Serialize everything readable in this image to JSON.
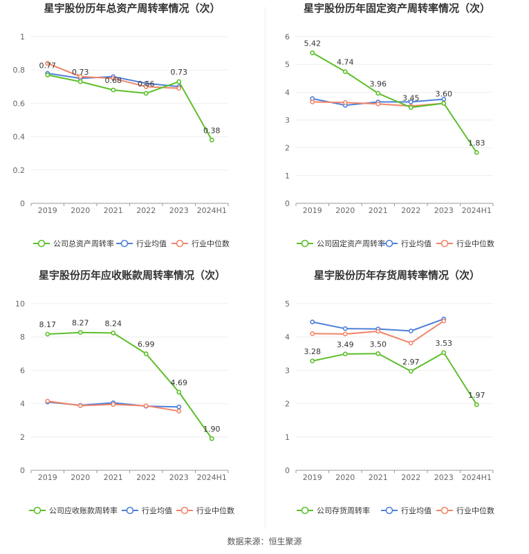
{
  "source_text": "数据来源：恒生聚源",
  "chart_data": [
    {
      "type": "line",
      "title": "星宇股份历年总资产周转率情况（次）",
      "categories": [
        "2019",
        "2020",
        "2021",
        "2022",
        "2023",
        "2024H1"
      ],
      "ylim": [
        0,
        1
      ],
      "yticks": [
        0,
        0.2,
        0.4,
        0.6,
        0.8,
        1
      ],
      "ytick_labels": [
        "0",
        "0.2",
        "0.4",
        "0.6",
        "0.8",
        "1"
      ],
      "series": [
        {
          "name": "公司总资产周转率",
          "color": "#5bbf29",
          "values": [
            0.77,
            0.73,
            0.68,
            0.66,
            0.73,
            0.38
          ],
          "labels": [
            "0.77",
            "0.73",
            "0.68",
            "0.66",
            "0.73",
            "0.38"
          ]
        },
        {
          "name": "行业均值",
          "color": "#4d7fd9",
          "values": [
            0.78,
            0.75,
            0.76,
            0.72,
            0.7,
            null
          ]
        },
        {
          "name": "行业中位数",
          "color": "#f28468",
          "values": [
            0.84,
            0.76,
            0.75,
            0.7,
            0.69,
            null
          ]
        }
      ]
    },
    {
      "type": "line",
      "title": "星宇股份历年固定资产周转率情况（次）",
      "categories": [
        "2019",
        "2020",
        "2021",
        "2022",
        "2023",
        "2024H1"
      ],
      "ylim": [
        0,
        6
      ],
      "yticks": [
        0,
        1,
        2,
        3,
        4,
        5,
        6
      ],
      "ytick_labels": [
        "0",
        "1",
        "2",
        "3",
        "4",
        "5",
        "6"
      ],
      "series": [
        {
          "name": "公司固定资产周转率",
          "color": "#5bbf29",
          "values": [
            5.42,
            4.74,
            3.96,
            3.45,
            3.6,
            1.83
          ],
          "labels": [
            "5.42",
            "4.74",
            "3.96",
            "3.45",
            "3.60",
            "1.83"
          ]
        },
        {
          "name": "行业均值",
          "color": "#4d7fd9",
          "values": [
            3.77,
            3.53,
            3.65,
            3.65,
            3.75,
            null
          ]
        },
        {
          "name": "行业中位数",
          "color": "#f28468",
          "values": [
            3.65,
            3.63,
            3.58,
            3.5,
            3.6,
            null
          ]
        }
      ]
    },
    {
      "type": "line",
      "title": "星宇股份历年应收账款周转率情况（次）",
      "categories": [
        "2019",
        "2020",
        "2021",
        "2022",
        "2023",
        "2024H1"
      ],
      "ylim": [
        0,
        10
      ],
      "yticks": [
        0,
        2,
        4,
        6,
        8,
        10
      ],
      "ytick_labels": [
        "0",
        "2",
        "4",
        "6",
        "8",
        "10"
      ],
      "series": [
        {
          "name": "公司应收账款周转率",
          "color": "#5bbf29",
          "values": [
            8.17,
            8.27,
            8.24,
            6.99,
            4.69,
            1.9
          ],
          "labels": [
            "8.17",
            "8.27",
            "8.24",
            "6.99",
            "4.69",
            "1.90"
          ]
        },
        {
          "name": "行业均值",
          "color": "#4d7fd9",
          "values": [
            4.1,
            3.9,
            4.05,
            3.85,
            3.8,
            null
          ]
        },
        {
          "name": "行业中位数",
          "color": "#f28468",
          "values": [
            4.15,
            3.88,
            3.95,
            3.87,
            3.55,
            null
          ]
        }
      ]
    },
    {
      "type": "line",
      "title": "星宇股份历年存货周转率情况（次）",
      "categories": [
        "2019",
        "2020",
        "2021",
        "2022",
        "2023",
        "2024H1"
      ],
      "ylim": [
        0,
        5
      ],
      "yticks": [
        0,
        1,
        2,
        3,
        4,
        5
      ],
      "ytick_labels": [
        "0",
        "1",
        "2",
        "3",
        "4",
        "5"
      ],
      "series": [
        {
          "name": "公司存货周转率",
          "color": "#5bbf29",
          "values": [
            3.28,
            3.49,
            3.5,
            2.97,
            3.53,
            1.97
          ],
          "labels": [
            "3.28",
            "3.49",
            "3.50",
            "2.97",
            "3.53",
            "1.97"
          ]
        },
        {
          "name": "行业均值",
          "color": "#4d7fd9",
          "values": [
            4.45,
            4.25,
            4.24,
            4.18,
            4.54,
            null
          ]
        },
        {
          "name": "行业中位数",
          "color": "#f28468",
          "values": [
            4.1,
            4.09,
            4.17,
            3.82,
            4.48,
            null
          ]
        }
      ]
    }
  ]
}
